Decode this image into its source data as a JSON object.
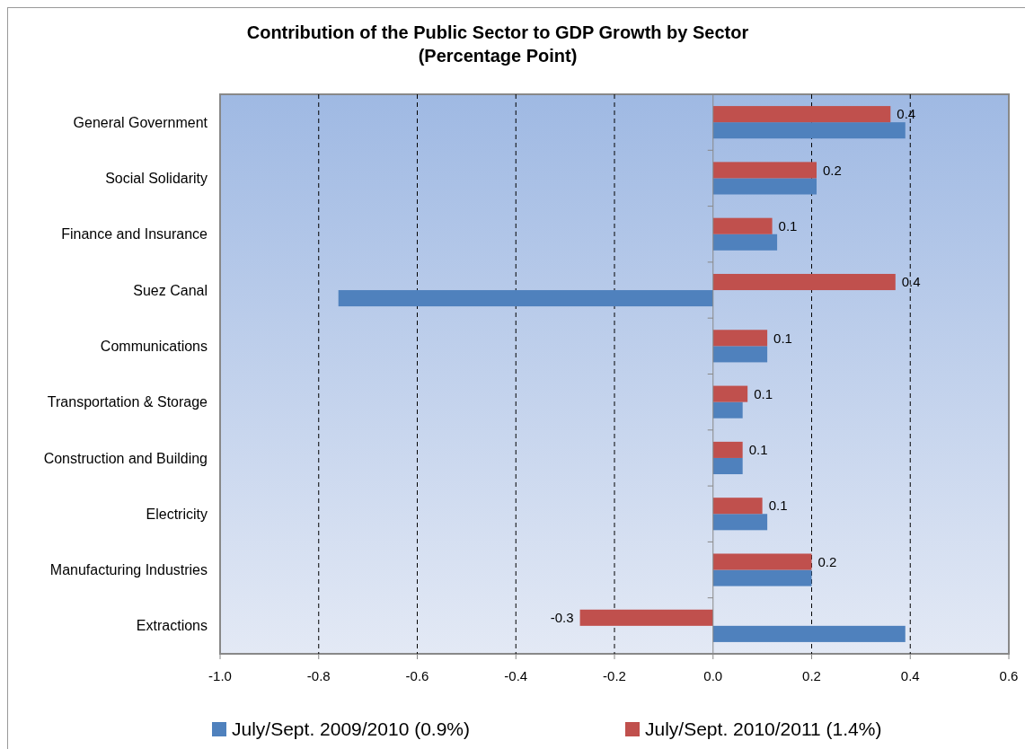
{
  "chart_data": {
    "type": "bar",
    "orientation": "horizontal",
    "title": "Contribution of the Public Sector to GDP Growth by Sector\n(Percentage Point)",
    "categories": [
      "General Government",
      "Social Solidarity",
      "Finance and Insurance",
      "Suez Canal",
      "Communications",
      "Transportation & Storage",
      "Construction and Building",
      "Electricity",
      "Manufacturing Industries",
      "Extractions"
    ],
    "series": [
      {
        "name": "July/Sept. 2009/2010 (0.9%)",
        "color": "#4f81bd",
        "values": [
          0.39,
          0.21,
          0.13,
          -0.76,
          0.11,
          0.06,
          0.06,
          0.11,
          0.2,
          0.39
        ]
      },
      {
        "name": "July/Sept. 2010/2011 (1.4%)",
        "color": "#c0504d",
        "values": [
          0.36,
          0.21,
          0.12,
          0.37,
          0.11,
          0.07,
          0.06,
          0.1,
          0.2,
          -0.27
        ],
        "value_labels": [
          "0.4",
          "0.2",
          "0.1",
          "0.4",
          "0.1",
          "0.1",
          "0.1",
          "0.1",
          "0.2",
          "-0.3"
        ]
      }
    ],
    "xlim": [
      -1.0,
      0.6
    ],
    "xticks": [
      {
        "value": -1,
        "label": "-1.0"
      },
      {
        "value": -0.8,
        "label": "-0.8"
      },
      {
        "value": -0.6,
        "label": "-0.6"
      },
      {
        "value": -0.4,
        "label": "-0.4"
      },
      {
        "value": -0.2,
        "label": "-0.2"
      },
      {
        "value": 0,
        "label": "0.0"
      },
      {
        "value": 0.2,
        "label": "0.2"
      },
      {
        "value": 0.4,
        "label": "0.4"
      },
      {
        "value": 0.6,
        "label": "0.6"
      }
    ],
    "grid": "x",
    "legend": "bottom"
  }
}
